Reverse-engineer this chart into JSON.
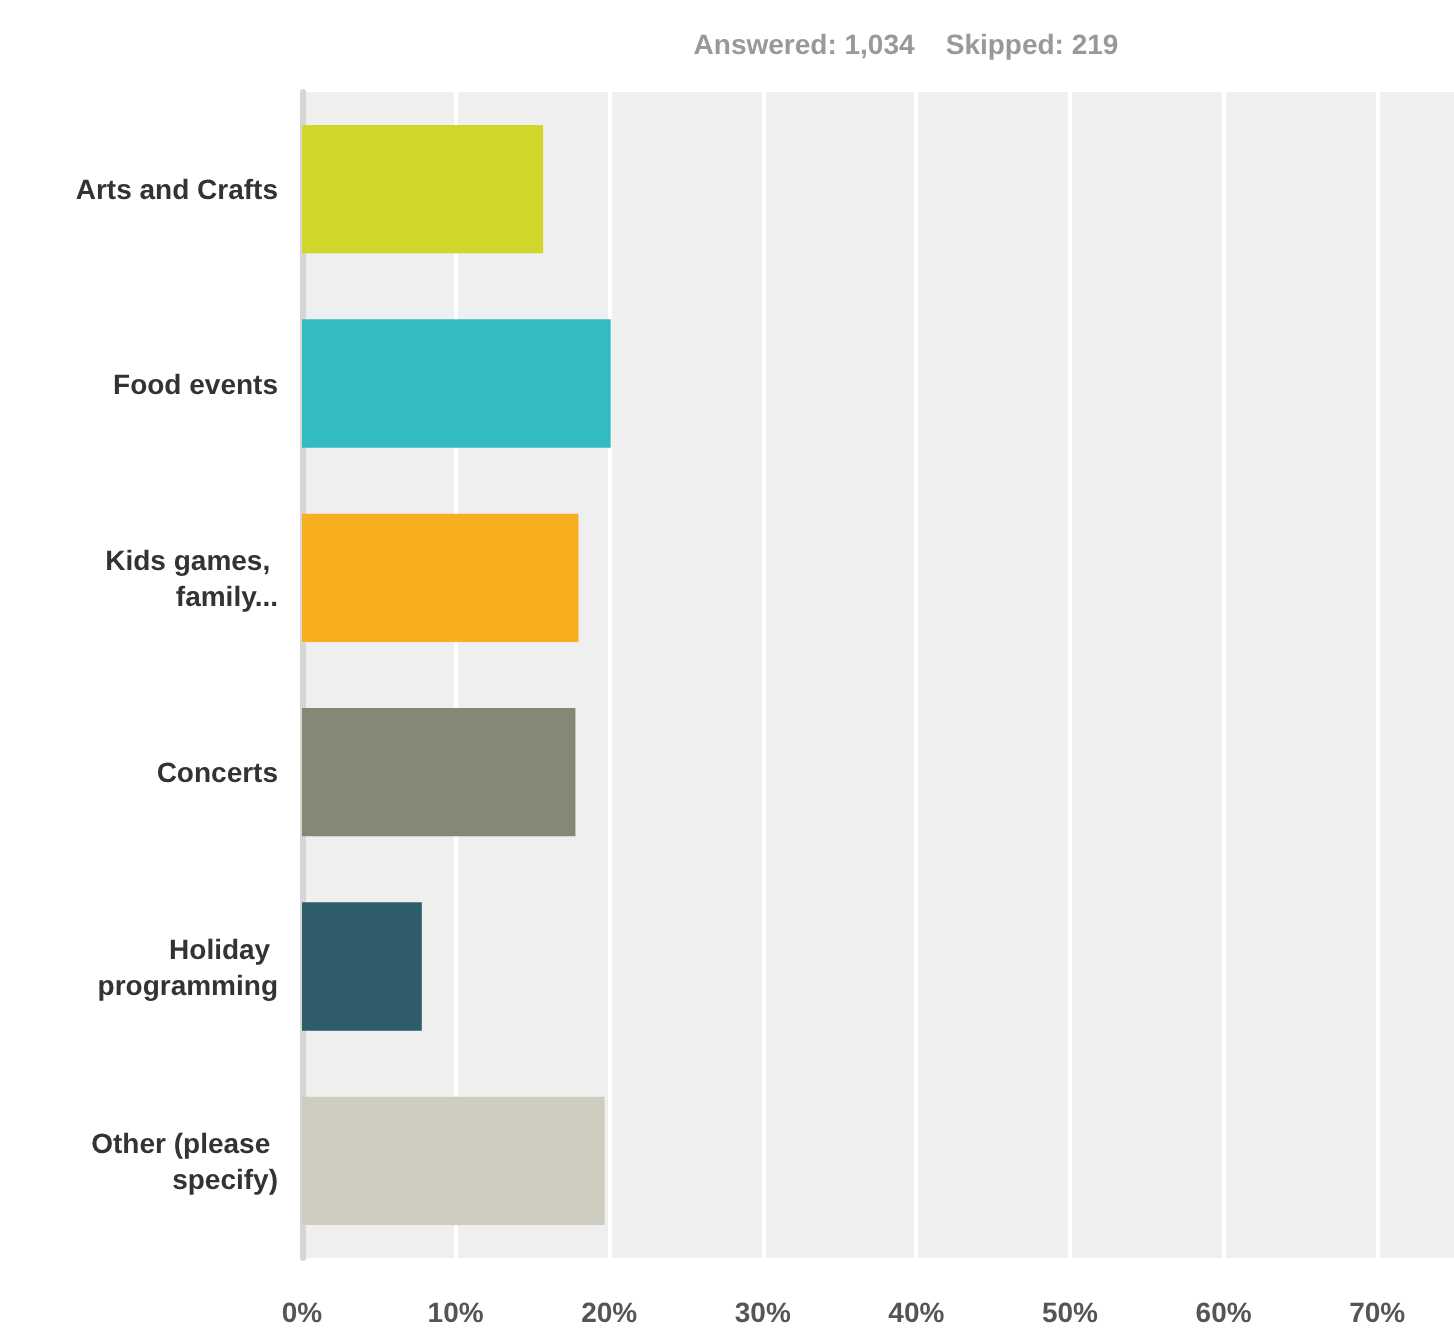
{
  "chart_data": {
    "type": "bar",
    "orientation": "horizontal",
    "subtitle": "Answered: 1,034    Skipped: 219",
    "categories": [
      "Arts and Crafts",
      "Food events",
      "Kids games, family...",
      "Concerts",
      "Holiday programming",
      "Other (please specify)"
    ],
    "values": [
      15.7,
      20.1,
      18.0,
      17.8,
      7.8,
      19.7
    ],
    "colors": [
      "#d0d72a",
      "#33bcbf",
      "#f7af1f",
      "#868775",
      "#2e5c69",
      "#cfcdbf"
    ],
    "xlim": [
      0,
      75
    ],
    "xticks": [
      {
        "value": 0,
        "label": "0%"
      },
      {
        "value": 10,
        "label": "10%"
      },
      {
        "value": 20,
        "label": "20%"
      },
      {
        "value": 30,
        "label": "30%"
      },
      {
        "value": 40,
        "label": "40%"
      },
      {
        "value": 50,
        "label": "50%"
      },
      {
        "value": 60,
        "label": "60%"
      },
      {
        "value": 70,
        "label": "70%"
      }
    ],
    "grid": "x"
  }
}
